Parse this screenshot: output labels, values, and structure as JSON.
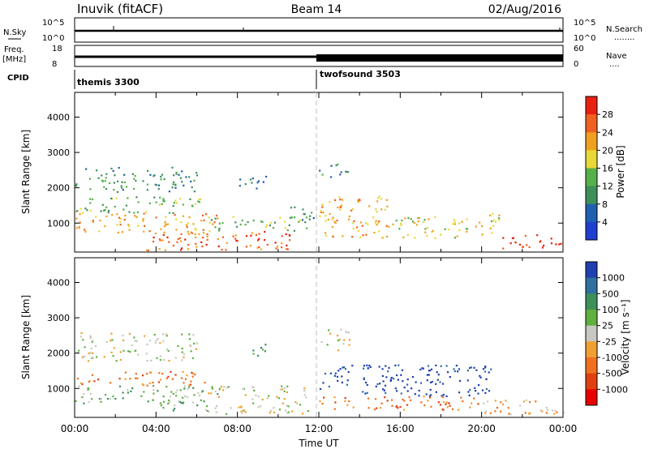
{
  "header": {
    "station": "Inuvik (fitACF)",
    "beam": "Beam 14",
    "date": "02/Aug/2016"
  },
  "status_panels": {
    "nsky_label": "N.Sky",
    "nsearch_label": "N.Search",
    "nsearch_dots": "........",
    "nsky_ticks": [
      "10^5",
      "10^0"
    ],
    "nsearch_ticks": [
      "10^5",
      "10^0"
    ],
    "freq_label_1": "Freq.",
    "freq_label_2": "[MHz]",
    "freq_ticks": [
      "18",
      "8"
    ],
    "nave_label": "Nave",
    "nave_dots": "....",
    "nave_ticks": [
      "60",
      "0"
    ],
    "cpid_label": "CPID",
    "cpid_1": "themis 3300",
    "cpid_2": "twofsound 3503",
    "cpid_switch_time_h": 12
  },
  "colors": {
    "power": [
      "#1f3fd0",
      "#2060b0",
      "#3f8f5a",
      "#55b04a",
      "#e8d838",
      "#f0a020",
      "#f06020",
      "#e82010"
    ],
    "velocity": [
      "#2040b0",
      "#3070a0",
      "#3f8f5a",
      "#60b040",
      "#c8c8c0",
      "#f0a030",
      "#f07020",
      "#e04010",
      "#e80000"
    ],
    "velocity_gray": "#c8c8c0"
  },
  "chart_data": [
    {
      "type": "heatmap",
      "title": "Power",
      "ylabel": "Slant Range [km]",
      "xlabel": "",
      "x_unit": "hours UT",
      "xlim": [
        0,
        24
      ],
      "ylim": [
        180,
        4700
      ],
      "y_ticks": [
        "1000",
        "2000",
        "3000",
        "4000"
      ],
      "colorbar": {
        "label": "Power [dB]",
        "ticks": [
          "4",
          "8",
          "12",
          "16",
          "20",
          "24",
          "28"
        ],
        "range": [
          0,
          32
        ]
      },
      "dashed_line_h": 12,
      "scatter_regions": [
        {
          "t0": 0.0,
          "t1": 6.0,
          "r0": 1900,
          "r1": 2600,
          "level": 2
        },
        {
          "t0": 0.0,
          "t1": 6.2,
          "r0": 1300,
          "r1": 1800,
          "level": 3
        },
        {
          "t0": 0.0,
          "t1": 7.0,
          "r0": 700,
          "r1": 1300,
          "level": 5
        },
        {
          "t0": 3.5,
          "t1": 11.0,
          "r0": 250,
          "r1": 800,
          "level": 6
        },
        {
          "t0": 6.5,
          "t1": 11.5,
          "r0": 800,
          "r1": 1200,
          "level": 3
        },
        {
          "t0": 8.0,
          "t1": 9.5,
          "r0": 2000,
          "r1": 2400,
          "level": 1
        },
        {
          "t0": 10.5,
          "t1": 11.8,
          "r0": 1000,
          "r1": 1500,
          "level": 2
        },
        {
          "t0": 12.0,
          "t1": 13.5,
          "r0": 2300,
          "r1": 2700,
          "level": 2
        },
        {
          "t0": 12.0,
          "t1": 15.5,
          "r0": 600,
          "r1": 1800,
          "level": 5
        },
        {
          "t0": 15.5,
          "t1": 20.0,
          "r0": 600,
          "r1": 1200,
          "level": 4
        },
        {
          "t0": 20.0,
          "t1": 21.0,
          "r0": 700,
          "r1": 1300,
          "level": 4
        },
        {
          "t0": 21.0,
          "t1": 24.0,
          "r0": 300,
          "r1": 700,
          "level": 7
        }
      ]
    },
    {
      "type": "heatmap",
      "title": "Velocity",
      "ylabel": "Slant Range [km]",
      "xlabel": "Time UT",
      "x_unit": "hours UT",
      "xlim": [
        0,
        24
      ],
      "ylim": [
        180,
        4700
      ],
      "x_ticks": [
        "00:00",
        "04:00",
        "08:00",
        "12:00",
        "16:00",
        "20:00",
        "00:00"
      ],
      "y_ticks": [
        "1000",
        "2000",
        "3000",
        "4000"
      ],
      "colorbar": {
        "label": "Velocity [m s⁻¹]",
        "ticks": [
          "1000",
          "500",
          "100",
          "25",
          "-25",
          "-100",
          "-500",
          "-1000"
        ]
      },
      "dashed_line_h": 12,
      "scatter_regions": [
        {
          "t0": 0.0,
          "t1": 6.0,
          "r0": 1800,
          "r1": 2600,
          "level": 4
        },
        {
          "t0": 0.0,
          "t1": 6.5,
          "r0": 1100,
          "r1": 1500,
          "level": 6
        },
        {
          "t0": 0.0,
          "t1": 7.0,
          "r0": 600,
          "r1": 1100,
          "level": 3
        },
        {
          "t0": 6.5,
          "t1": 11.5,
          "r0": 300,
          "r1": 1100,
          "level": 4
        },
        {
          "t0": 4.0,
          "t1": 6.5,
          "r0": 350,
          "r1": 700,
          "level": 3
        },
        {
          "t0": 8.5,
          "t1": 9.5,
          "r0": 1900,
          "r1": 2300,
          "level": 2
        },
        {
          "t0": 12.0,
          "t1": 13.5,
          "r0": 2100,
          "r1": 2700,
          "level": 4
        },
        {
          "t0": 12.0,
          "t1": 20.5,
          "r0": 800,
          "r1": 1700,
          "level": 0
        },
        {
          "t0": 12.0,
          "t1": 20.0,
          "r0": 400,
          "r1": 800,
          "level": 6
        },
        {
          "t0": 20.0,
          "t1": 24.0,
          "r0": 250,
          "r1": 700,
          "level": 5
        }
      ]
    }
  ]
}
